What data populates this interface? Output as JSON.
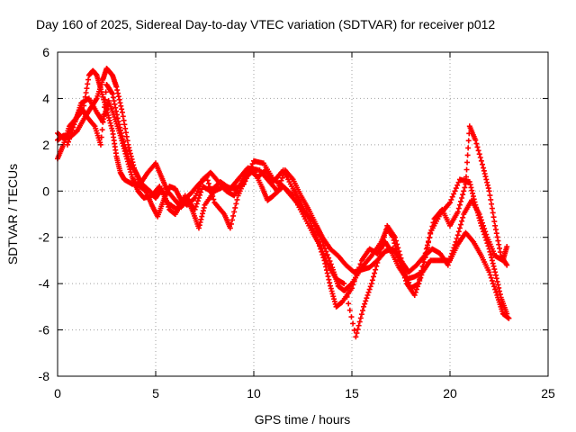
{
  "chart_data": {
    "type": "scatter",
    "title": "Day 160 of 2025, Sidereal Day-to-day VTEC variation (SDTVAR) for receiver p012",
    "xlabel": "GPS time / hours",
    "ylabel": "SDTVAR / TECUs",
    "xlim": [
      0,
      25
    ],
    "ylim": [
      -8,
      6
    ],
    "xticks": [
      "0",
      "5",
      "10",
      "15",
      "20",
      "25"
    ],
    "yticks": [
      "-8",
      "-6",
      "-4",
      "-2",
      "0",
      "2",
      "4",
      "6"
    ],
    "grid": true,
    "marker": "+",
    "color": "#ff0000",
    "series": [
      {
        "name": "track-1",
        "points": [
          [
            0.0,
            1.4
          ],
          [
            0.3,
            2.0
          ],
          [
            0.6,
            2.8
          ],
          [
            1.0,
            3.2
          ],
          [
            1.3,
            3.5
          ],
          [
            1.6,
            5.0
          ],
          [
            1.8,
            5.2
          ],
          [
            2.0,
            5.0
          ],
          [
            2.2,
            4.4
          ],
          [
            2.5,
            3.5
          ],
          [
            2.8,
            2.6
          ],
          [
            3.0,
            1.5
          ],
          [
            3.2,
            0.8
          ],
          [
            3.4,
            0.5
          ],
          [
            3.8,
            0.3
          ],
          [
            4.2,
            0.3
          ],
          [
            4.6,
            0.8
          ],
          [
            5.0,
            1.2
          ],
          [
            5.3,
            0.6
          ],
          [
            5.6,
            0.0
          ],
          [
            6.0,
            -0.4
          ],
          [
            6.3,
            -0.7
          ],
          [
            6.6,
            -0.3
          ],
          [
            6.9,
            -0.9
          ],
          [
            7.2,
            -1.6
          ],
          [
            7.5,
            -0.6
          ],
          [
            8.0,
            0.0
          ],
          [
            8.5,
            0.2
          ],
          [
            9.0,
            0.1
          ],
          [
            9.5,
            0.3
          ],
          [
            10.0,
            1.3
          ],
          [
            10.5,
            1.2
          ],
          [
            11.0,
            0.5
          ],
          [
            11.5,
            0.2
          ],
          [
            12.0,
            -0.3
          ],
          [
            12.5,
            -0.8
          ],
          [
            13.0,
            -1.3
          ],
          [
            13.5,
            -2.2
          ],
          [
            14.0,
            -3.3
          ],
          [
            14.3,
            -4.1
          ],
          [
            14.6,
            -4.3
          ],
          [
            15.0,
            -4.0
          ],
          [
            15.5,
            -3.3
          ],
          [
            16.0,
            -2.8
          ],
          [
            16.5,
            -2.2
          ],
          [
            16.8,
            -1.6
          ],
          [
            17.1,
            -2.0
          ],
          [
            17.4,
            -3.0
          ],
          [
            17.8,
            -4.0
          ],
          [
            18.2,
            -4.5
          ],
          [
            18.6,
            -3.5
          ],
          [
            19.0,
            -1.8
          ],
          [
            19.5,
            -1.0
          ],
          [
            20.0,
            -0.5
          ],
          [
            20.5,
            0.5
          ],
          [
            21.0,
            0.4
          ],
          [
            21.3,
            -0.6
          ],
          [
            21.6,
            -1.5
          ],
          [
            22.0,
            -2.5
          ],
          [
            22.3,
            -3.5
          ],
          [
            22.6,
            -4.6
          ],
          [
            22.9,
            -5.3
          ]
        ]
      },
      {
        "name": "track-2",
        "points": [
          [
            0.0,
            2.2
          ],
          [
            0.3,
            2.4
          ],
          [
            0.6,
            2.3
          ],
          [
            1.0,
            2.6
          ],
          [
            1.4,
            3.2
          ],
          [
            1.7,
            3.6
          ],
          [
            2.0,
            4.0
          ],
          [
            2.3,
            4.8
          ],
          [
            2.5,
            5.3
          ],
          [
            2.8,
            5.0
          ],
          [
            3.0,
            4.5
          ],
          [
            3.3,
            3.4
          ],
          [
            3.6,
            2.0
          ],
          [
            3.9,
            1.0
          ],
          [
            4.2,
            0.2
          ],
          [
            4.5,
            0.0
          ],
          [
            4.8,
            -0.6
          ],
          [
            5.1,
            -1.1
          ],
          [
            5.4,
            -0.4
          ],
          [
            5.7,
            0.2
          ],
          [
            6.0,
            0.1
          ],
          [
            6.3,
            -0.4
          ],
          [
            6.6,
            -0.6
          ],
          [
            7.0,
            -0.3
          ],
          [
            7.4,
            0.5
          ],
          [
            7.8,
            0.8
          ],
          [
            8.2,
            0.4
          ],
          [
            8.6,
            0.0
          ],
          [
            9.0,
            -0.2
          ],
          [
            9.4,
            0.4
          ],
          [
            9.8,
            0.9
          ],
          [
            10.2,
            0.6
          ],
          [
            10.6,
            0.9
          ],
          [
            11.0,
            0.4
          ],
          [
            11.5,
            0.9
          ],
          [
            12.0,
            0.1
          ],
          [
            12.4,
            -0.5
          ],
          [
            12.8,
            -1.2
          ],
          [
            13.2,
            -2.0
          ],
          [
            13.6,
            -3.0
          ],
          [
            13.9,
            -4.1
          ],
          [
            14.2,
            -5.0
          ],
          [
            14.5,
            -4.8
          ],
          [
            15.0,
            -4.2
          ],
          [
            15.5,
            -3.0
          ],
          [
            15.9,
            -2.5
          ],
          [
            16.3,
            -2.7
          ],
          [
            16.7,
            -2.2
          ],
          [
            17.0,
            -2.6
          ],
          [
            17.4,
            -3.3
          ],
          [
            17.8,
            -3.8
          ],
          [
            18.2,
            -3.7
          ],
          [
            18.6,
            -3.5
          ],
          [
            19.0,
            -3.0
          ],
          [
            19.5,
            -3.0
          ],
          [
            20.0,
            -3.0
          ],
          [
            20.4,
            -2.3
          ],
          [
            20.8,
            -1.8
          ],
          [
            21.2,
            -2.2
          ],
          [
            21.6,
            -2.8
          ],
          [
            22.0,
            -3.5
          ],
          [
            22.4,
            -4.5
          ],
          [
            22.7,
            -5.3
          ],
          [
            23.0,
            -5.5
          ]
        ]
      },
      {
        "name": "track-3",
        "points": [
          [
            0.0,
            2.5
          ],
          [
            0.4,
            2.2
          ],
          [
            0.8,
            2.9
          ],
          [
            1.2,
            3.6
          ],
          [
            1.5,
            3.2
          ],
          [
            1.9,
            2.8
          ],
          [
            2.2,
            2.0
          ],
          [
            2.5,
            4.6
          ],
          [
            2.8,
            4.2
          ],
          [
            3.1,
            3.0
          ],
          [
            3.4,
            2.0
          ],
          [
            3.7,
            1.2
          ],
          [
            4.0,
            0.8
          ],
          [
            4.3,
            0.3
          ],
          [
            4.7,
            0.0
          ],
          [
            5.0,
            -0.3
          ],
          [
            5.3,
            0.1
          ],
          [
            5.7,
            -0.8
          ],
          [
            6.0,
            -1.0
          ],
          [
            6.4,
            -0.4
          ],
          [
            6.8,
            -0.1
          ],
          [
            7.2,
            0.3
          ],
          [
            7.6,
            0.6
          ],
          [
            8.0,
            -0.5
          ],
          [
            8.5,
            -1.0
          ],
          [
            8.8,
            -1.6
          ],
          [
            9.2,
            -0.2
          ],
          [
            9.6,
            0.6
          ],
          [
            10.0,
            0.9
          ],
          [
            10.4,
            0.2
          ],
          [
            10.7,
            -0.4
          ],
          [
            11.0,
            -0.2
          ],
          [
            11.5,
            0.2
          ],
          [
            12.0,
            -0.2
          ],
          [
            12.5,
            -1.0
          ],
          [
            13.0,
            -1.8
          ],
          [
            13.4,
            -2.4
          ],
          [
            13.8,
            -3.2
          ],
          [
            14.2,
            -3.8
          ],
          [
            14.6,
            -4.0
          ],
          [
            15.2,
            -6.3
          ],
          [
            15.6,
            -5.0
          ],
          [
            16.0,
            -4.0
          ],
          [
            16.4,
            -2.8
          ],
          [
            16.8,
            -1.5
          ],
          [
            17.2,
            -2.0
          ],
          [
            17.6,
            -3.2
          ],
          [
            18.0,
            -4.2
          ],
          [
            18.4,
            -4.0
          ],
          [
            18.8,
            -2.5
          ],
          [
            19.2,
            -1.2
          ],
          [
            19.6,
            -0.8
          ],
          [
            20.0,
            -1.5
          ],
          [
            20.4,
            -0.9
          ],
          [
            20.8,
            0.3
          ],
          [
            21.0,
            2.8
          ],
          [
            21.3,
            2.2
          ],
          [
            21.7,
            1.0
          ],
          [
            22.0,
            0.0
          ],
          [
            22.3,
            -1.5
          ],
          [
            22.6,
            -2.8
          ],
          [
            22.9,
            -3.2
          ]
        ]
      },
      {
        "name": "track-4",
        "points": [
          [
            0.5,
            2.0
          ],
          [
            0.9,
            3.0
          ],
          [
            1.2,
            3.8
          ],
          [
            1.6,
            4.0
          ],
          [
            2.0,
            3.4
          ],
          [
            2.3,
            3.0
          ],
          [
            2.6,
            3.9
          ],
          [
            2.9,
            3.2
          ],
          [
            3.2,
            2.4
          ],
          [
            3.5,
            1.5
          ],
          [
            3.8,
            0.6
          ],
          [
            4.1,
            0.0
          ],
          [
            4.4,
            -0.3
          ],
          [
            4.8,
            -0.2
          ],
          [
            5.2,
            0.2
          ],
          [
            5.6,
            -0.5
          ],
          [
            6.1,
            -0.8
          ],
          [
            6.5,
            -0.2
          ],
          [
            7.0,
            -0.8
          ],
          [
            7.4,
            0.2
          ],
          [
            7.8,
            0.0
          ],
          [
            8.3,
            0.4
          ],
          [
            8.8,
            0.1
          ],
          [
            9.3,
            0.6
          ],
          [
            9.7,
            1.0
          ],
          [
            10.3,
            0.9
          ],
          [
            10.8,
            0.4
          ],
          [
            11.2,
            0.0
          ],
          [
            11.6,
            0.9
          ],
          [
            12.0,
            0.5
          ],
          [
            12.4,
            -0.2
          ],
          [
            12.8,
            -0.8
          ],
          [
            13.2,
            -1.5
          ],
          [
            13.5,
            -2.0
          ],
          [
            13.9,
            -2.5
          ],
          [
            14.3,
            -2.8
          ],
          [
            14.7,
            -3.2
          ],
          [
            15.1,
            -3.5
          ],
          [
            15.5,
            -3.4
          ],
          [
            15.9,
            -3.3
          ],
          [
            16.3,
            -3.0
          ],
          [
            16.7,
            -2.6
          ],
          [
            17.1,
            -2.5
          ],
          [
            17.5,
            -3.0
          ],
          [
            17.9,
            -3.5
          ],
          [
            18.3,
            -3.2
          ],
          [
            18.7,
            -2.8
          ],
          [
            19.1,
            -2.5
          ],
          [
            19.5,
            -2.7
          ],
          [
            19.9,
            -3.2
          ],
          [
            20.3,
            -2.2
          ],
          [
            20.7,
            -1.0
          ],
          [
            21.1,
            -0.4
          ],
          [
            21.5,
            -1.0
          ],
          [
            21.9,
            -2.0
          ],
          [
            22.3,
            -2.8
          ],
          [
            22.7,
            -3.0
          ],
          [
            22.9,
            -2.4
          ]
        ]
      }
    ]
  }
}
